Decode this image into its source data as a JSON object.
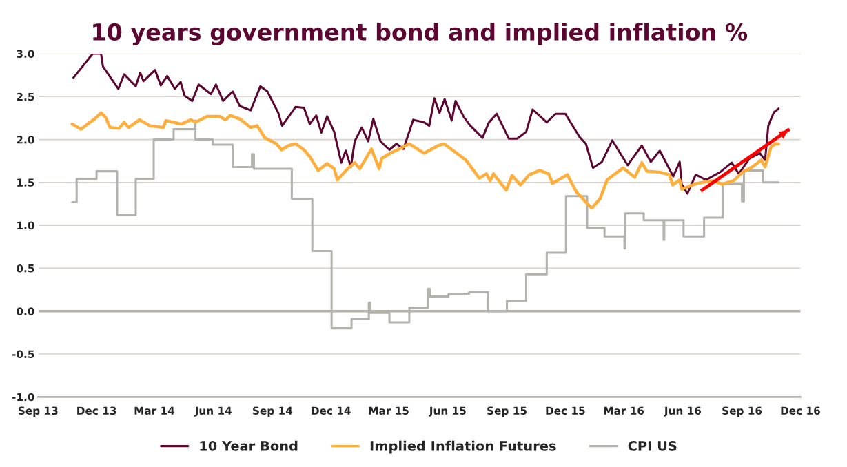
{
  "chart_data": {
    "type": "line",
    "title": "10 years government bond and implied inflation %",
    "ylim": [
      -1.0,
      3.0
    ],
    "yticks": [
      {
        "value": -1.0,
        "label": "-1.0"
      },
      {
        "value": -0.5,
        "label": "-0.5"
      },
      {
        "value": 0.0,
        "label": "0.0"
      },
      {
        "value": 0.5,
        "label": "0.5"
      },
      {
        "value": 1.0,
        "label": "1.0"
      },
      {
        "value": 1.5,
        "label": "1.5"
      },
      {
        "value": 2.0,
        "label": "2.0"
      },
      {
        "value": 2.5,
        "label": "2.5"
      },
      {
        "value": 3.0,
        "label": "3.0"
      }
    ],
    "xlim": [
      "2013-09-01",
      "2016-12-01"
    ],
    "xticks": [
      {
        "value": "2013-09-01",
        "label": "Sep 13"
      },
      {
        "value": "2013-12-01",
        "label": "Dec 13"
      },
      {
        "value": "2014-03-01",
        "label": "Mar 14"
      },
      {
        "value": "2014-06-01",
        "label": "Jun 14"
      },
      {
        "value": "2014-09-01",
        "label": "Sep 14"
      },
      {
        "value": "2014-12-01",
        "label": "Dec 14"
      },
      {
        "value": "2015-03-01",
        "label": "Mar 15"
      },
      {
        "value": "2015-06-01",
        "label": "Jun 15"
      },
      {
        "value": "2015-09-01",
        "label": "Sep 15"
      },
      {
        "value": "2015-12-01",
        "label": "Dec 15"
      },
      {
        "value": "2016-03-01",
        "label": "Mar 16"
      },
      {
        "value": "2016-06-01",
        "label": "Jun 16"
      },
      {
        "value": "2016-09-01",
        "label": "Sep 16"
      },
      {
        "value": "2016-12-01",
        "label": "Dec 16"
      }
    ],
    "grid": "y",
    "legend": "bottom",
    "marker": "none",
    "line_style": "solid",
    "ref_lines": [
      {
        "axis": "y",
        "value": 0.0,
        "color": "#b5b0a8"
      }
    ],
    "series": [
      {
        "name": "10 Year Bond",
        "color": "#5c0632",
        "x": [
          "2013-10-26",
          "2013-11-25",
          "2013-12-08",
          "2013-12-11",
          "2014-01-04",
          "2014-01-13",
          "2014-01-31",
          "2014-02-07",
          "2014-02-12",
          "2014-03-02",
          "2014-03-11",
          "2014-03-21",
          "2014-04-02",
          "2014-04-11",
          "2014-04-17",
          "2014-04-29",
          "2014-05-09",
          "2014-05-28",
          "2014-06-05",
          "2014-06-16",
          "2014-07-01",
          "2014-07-12",
          "2014-07-29",
          "2014-08-13",
          "2014-08-24",
          "2014-09-10",
          "2014-09-16",
          "2014-10-07",
          "2014-10-20",
          "2014-10-29",
          "2014-11-08",
          "2014-11-16",
          "2014-11-25",
          "2014-12-06",
          "2014-12-17",
          "2014-12-24",
          "2015-01-01",
          "2015-01-07",
          "2015-01-18",
          "2015-01-28",
          "2015-02-05",
          "2015-02-16",
          "2015-03-02",
          "2015-03-13",
          "2015-03-24",
          "2015-04-08",
          "2015-04-25",
          "2015-05-03",
          "2015-05-11",
          "2015-05-19",
          "2015-05-27",
          "2015-06-07",
          "2015-06-13",
          "2015-06-26",
          "2015-07-06",
          "2015-07-25",
          "2015-08-04",
          "2015-08-16",
          "2015-09-04",
          "2015-09-17",
          "2015-10-01",
          "2015-10-11",
          "2015-11-02",
          "2015-11-16",
          "2015-12-01",
          "2015-12-23",
          "2016-01-02",
          "2016-01-13",
          "2016-01-27",
          "2016-02-12",
          "2016-03-07",
          "2016-03-29",
          "2016-04-12",
          "2016-04-26",
          "2016-05-17",
          "2016-05-27",
          "2016-05-30",
          "2016-06-08",
          "2016-06-21",
          "2016-07-07",
          "2016-07-29",
          "2016-08-16",
          "2016-08-27",
          "2016-09-13",
          "2016-09-29",
          "2016-10-07",
          "2016-10-12",
          "2016-10-18",
          "2016-10-21",
          "2016-10-28"
        ],
        "values": [
          2.72,
          3.0,
          3.0,
          2.85,
          2.59,
          2.76,
          2.62,
          2.78,
          2.68,
          2.81,
          2.63,
          2.74,
          2.59,
          2.67,
          2.51,
          2.45,
          2.64,
          2.53,
          2.64,
          2.45,
          2.56,
          2.39,
          2.34,
          2.62,
          2.56,
          2.31,
          2.16,
          2.38,
          2.37,
          2.18,
          2.28,
          2.08,
          2.27,
          2.09,
          1.73,
          1.87,
          1.68,
          1.98,
          2.14,
          1.98,
          2.24,
          1.98,
          1.88,
          1.95,
          1.89,
          2.23,
          2.2,
          2.16,
          2.48,
          2.31,
          2.47,
          2.22,
          2.45,
          2.26,
          2.16,
          2.02,
          2.2,
          2.3,
          2.01,
          2.01,
          2.09,
          2.35,
          2.2,
          2.3,
          2.3,
          2.03,
          1.95,
          1.67,
          1.74,
          1.99,
          1.7,
          1.93,
          1.74,
          1.87,
          1.57,
          1.74,
          1.48,
          1.37,
          1.59,
          1.53,
          1.62,
          1.73,
          1.6,
          1.78,
          1.84,
          1.76,
          2.16,
          2.27,
          2.32,
          2.36
        ]
      },
      {
        "name": "Implied Inflation Futures",
        "color": "#ffae3b",
        "x": [
          "2013-10-24",
          "2013-11-07",
          "2013-11-17",
          "2013-11-28",
          "2013-12-08",
          "2013-12-15",
          "2013-12-22",
          "2014-01-05",
          "2014-01-13",
          "2014-01-20",
          "2014-02-06",
          "2014-02-22",
          "2014-03-15",
          "2014-03-19",
          "2014-04-12",
          "2014-04-27",
          "2014-05-04",
          "2014-05-22",
          "2014-06-10",
          "2014-06-20",
          "2014-06-27",
          "2014-07-12",
          "2014-07-29",
          "2014-08-08",
          "2014-08-20",
          "2014-09-07",
          "2014-09-15",
          "2014-09-26",
          "2014-10-07",
          "2014-10-20",
          "2014-10-29",
          "2014-11-11",
          "2014-11-25",
          "2014-12-06",
          "2014-12-11",
          "2014-12-27",
          "2015-01-07",
          "2015-01-15",
          "2015-02-02",
          "2015-02-14",
          "2015-02-18",
          "2015-03-06",
          "2015-03-17",
          "2015-04-02",
          "2015-04-25",
          "2015-05-17",
          "2015-05-26",
          "2015-06-15",
          "2015-06-29",
          "2015-07-20",
          "2015-07-31",
          "2015-08-06",
          "2015-08-11",
          "2015-08-31",
          "2015-09-09",
          "2015-09-22",
          "2015-10-06",
          "2015-10-22",
          "2015-11-05",
          "2015-11-11",
          "2015-12-04",
          "2015-12-18",
          "2016-01-11",
          "2016-01-24",
          "2016-02-04",
          "2016-02-20",
          "2016-02-29",
          "2016-03-18",
          "2016-03-29",
          "2016-04-06",
          "2016-04-25",
          "2016-05-11",
          "2016-05-16",
          "2016-05-27",
          "2016-05-30",
          "2016-06-23",
          "2016-07-18",
          "2016-08-01",
          "2016-08-19",
          "2016-09-02",
          "2016-09-17",
          "2016-10-01",
          "2016-10-07",
          "2016-10-16",
          "2016-10-23",
          "2016-10-28"
        ],
        "values": [
          2.18,
          2.12,
          2.18,
          2.24,
          2.31,
          2.26,
          2.14,
          2.13,
          2.2,
          2.14,
          2.23,
          2.16,
          2.14,
          2.22,
          2.18,
          2.23,
          2.2,
          2.27,
          2.27,
          2.23,
          2.28,
          2.24,
          2.14,
          2.16,
          2.02,
          1.95,
          1.88,
          1.93,
          1.95,
          1.88,
          1.8,
          1.64,
          1.72,
          1.66,
          1.53,
          1.66,
          1.73,
          1.66,
          1.89,
          1.66,
          1.78,
          1.85,
          1.89,
          1.95,
          1.84,
          1.93,
          1.95,
          1.84,
          1.76,
          1.55,
          1.6,
          1.52,
          1.6,
          1.41,
          1.58,
          1.47,
          1.59,
          1.64,
          1.6,
          1.49,
          1.59,
          1.39,
          1.2,
          1.31,
          1.53,
          1.62,
          1.67,
          1.56,
          1.73,
          1.63,
          1.62,
          1.59,
          1.47,
          1.53,
          1.42,
          1.49,
          1.52,
          1.48,
          1.52,
          1.62,
          1.68,
          1.76,
          1.68,
          1.91,
          1.95,
          1.95
        ]
      },
      {
        "name": "CPI US",
        "color": "#b3b3ae",
        "type": "step",
        "x": [
          "2013-10-24",
          "2013-10-31",
          "2013-12-01",
          "2014-01-02",
          "2014-01-31",
          "2014-02-28",
          "2014-03-31",
          "2014-05-03",
          "2014-05-04",
          "2014-05-31",
          "2014-07-01",
          "2014-07-31",
          "2014-08-03",
          "2014-10-01",
          "2014-11-02",
          "2014-12-02",
          "2015-01-02",
          "2015-01-29",
          "2015-01-31",
          "2015-03-02",
          "2015-04-02",
          "2015-05-01",
          "2015-05-04",
          "2015-06-02",
          "2015-07-04",
          "2015-08-03",
          "2015-09-01",
          "2015-10-01",
          "2015-11-02",
          "2015-12-02",
          "2016-01-04",
          "2016-01-31",
          "2016-03-02",
          "2016-03-03",
          "2016-04-01",
          "2016-05-02",
          "2016-05-03",
          "2016-06-02",
          "2016-07-04",
          "2016-08-02",
          "2016-09-01",
          "2016-09-04",
          "2016-10-04",
          "2016-10-28"
        ],
        "values": [
          1.27,
          1.54,
          1.63,
          1.12,
          1.54,
          2.0,
          2.12,
          2.22,
          2.0,
          1.94,
          1.68,
          1.83,
          1.66,
          1.31,
          0.7,
          -0.2,
          -0.09,
          0.1,
          -0.02,
          -0.13,
          0.04,
          0.26,
          0.17,
          0.2,
          0.22,
          0.0,
          0.12,
          0.43,
          0.68,
          1.34,
          0.97,
          0.87,
          0.73,
          1.14,
          1.06,
          0.83,
          1.06,
          0.87,
          1.09,
          1.48,
          1.28,
          1.64,
          1.5,
          1.5
        ]
      },
      {
        "color": "#ff0000",
        "x": [
          "2016-06-29",
          "2016-11-14"
        ],
        "values": [
          1.4,
          2.12
        ]
      }
    ]
  }
}
